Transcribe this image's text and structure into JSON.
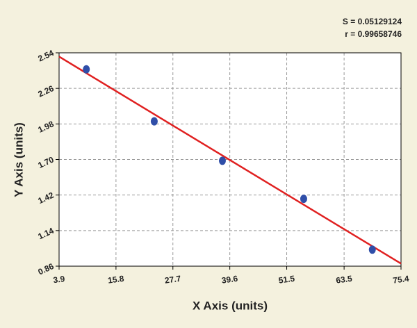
{
  "chart_data": {
    "type": "scatter",
    "x_label": "X Axis (units)",
    "y_label": "Y Axis (units)",
    "annotations": [
      "S = 0.05129124",
      "r = 0.99658746"
    ],
    "x": [
      9.6,
      23.8,
      38.05,
      55.05,
      69.4
    ],
    "values": [
      2.41,
      2.0,
      1.69,
      1.39,
      0.99
    ],
    "color": "#2f4ea8",
    "fit_line": {
      "x": [
        3.9,
        75.4
      ],
      "y": [
        2.51,
        0.88
      ],
      "color": "#e02020"
    },
    "xlim": [
      3.9,
      75.4
    ],
    "xticks": [
      3.9,
      15.8,
      27.7,
      39.6,
      51.5,
      63.5,
      75.4
    ],
    "ylim": [
      0.86,
      2.54
    ],
    "yticks": [
      0.86,
      1.14,
      1.42,
      {
        "value": 1.7,
        "label": "1.70"
      },
      1.98,
      2.26,
      2.54
    ],
    "grid": true
  }
}
